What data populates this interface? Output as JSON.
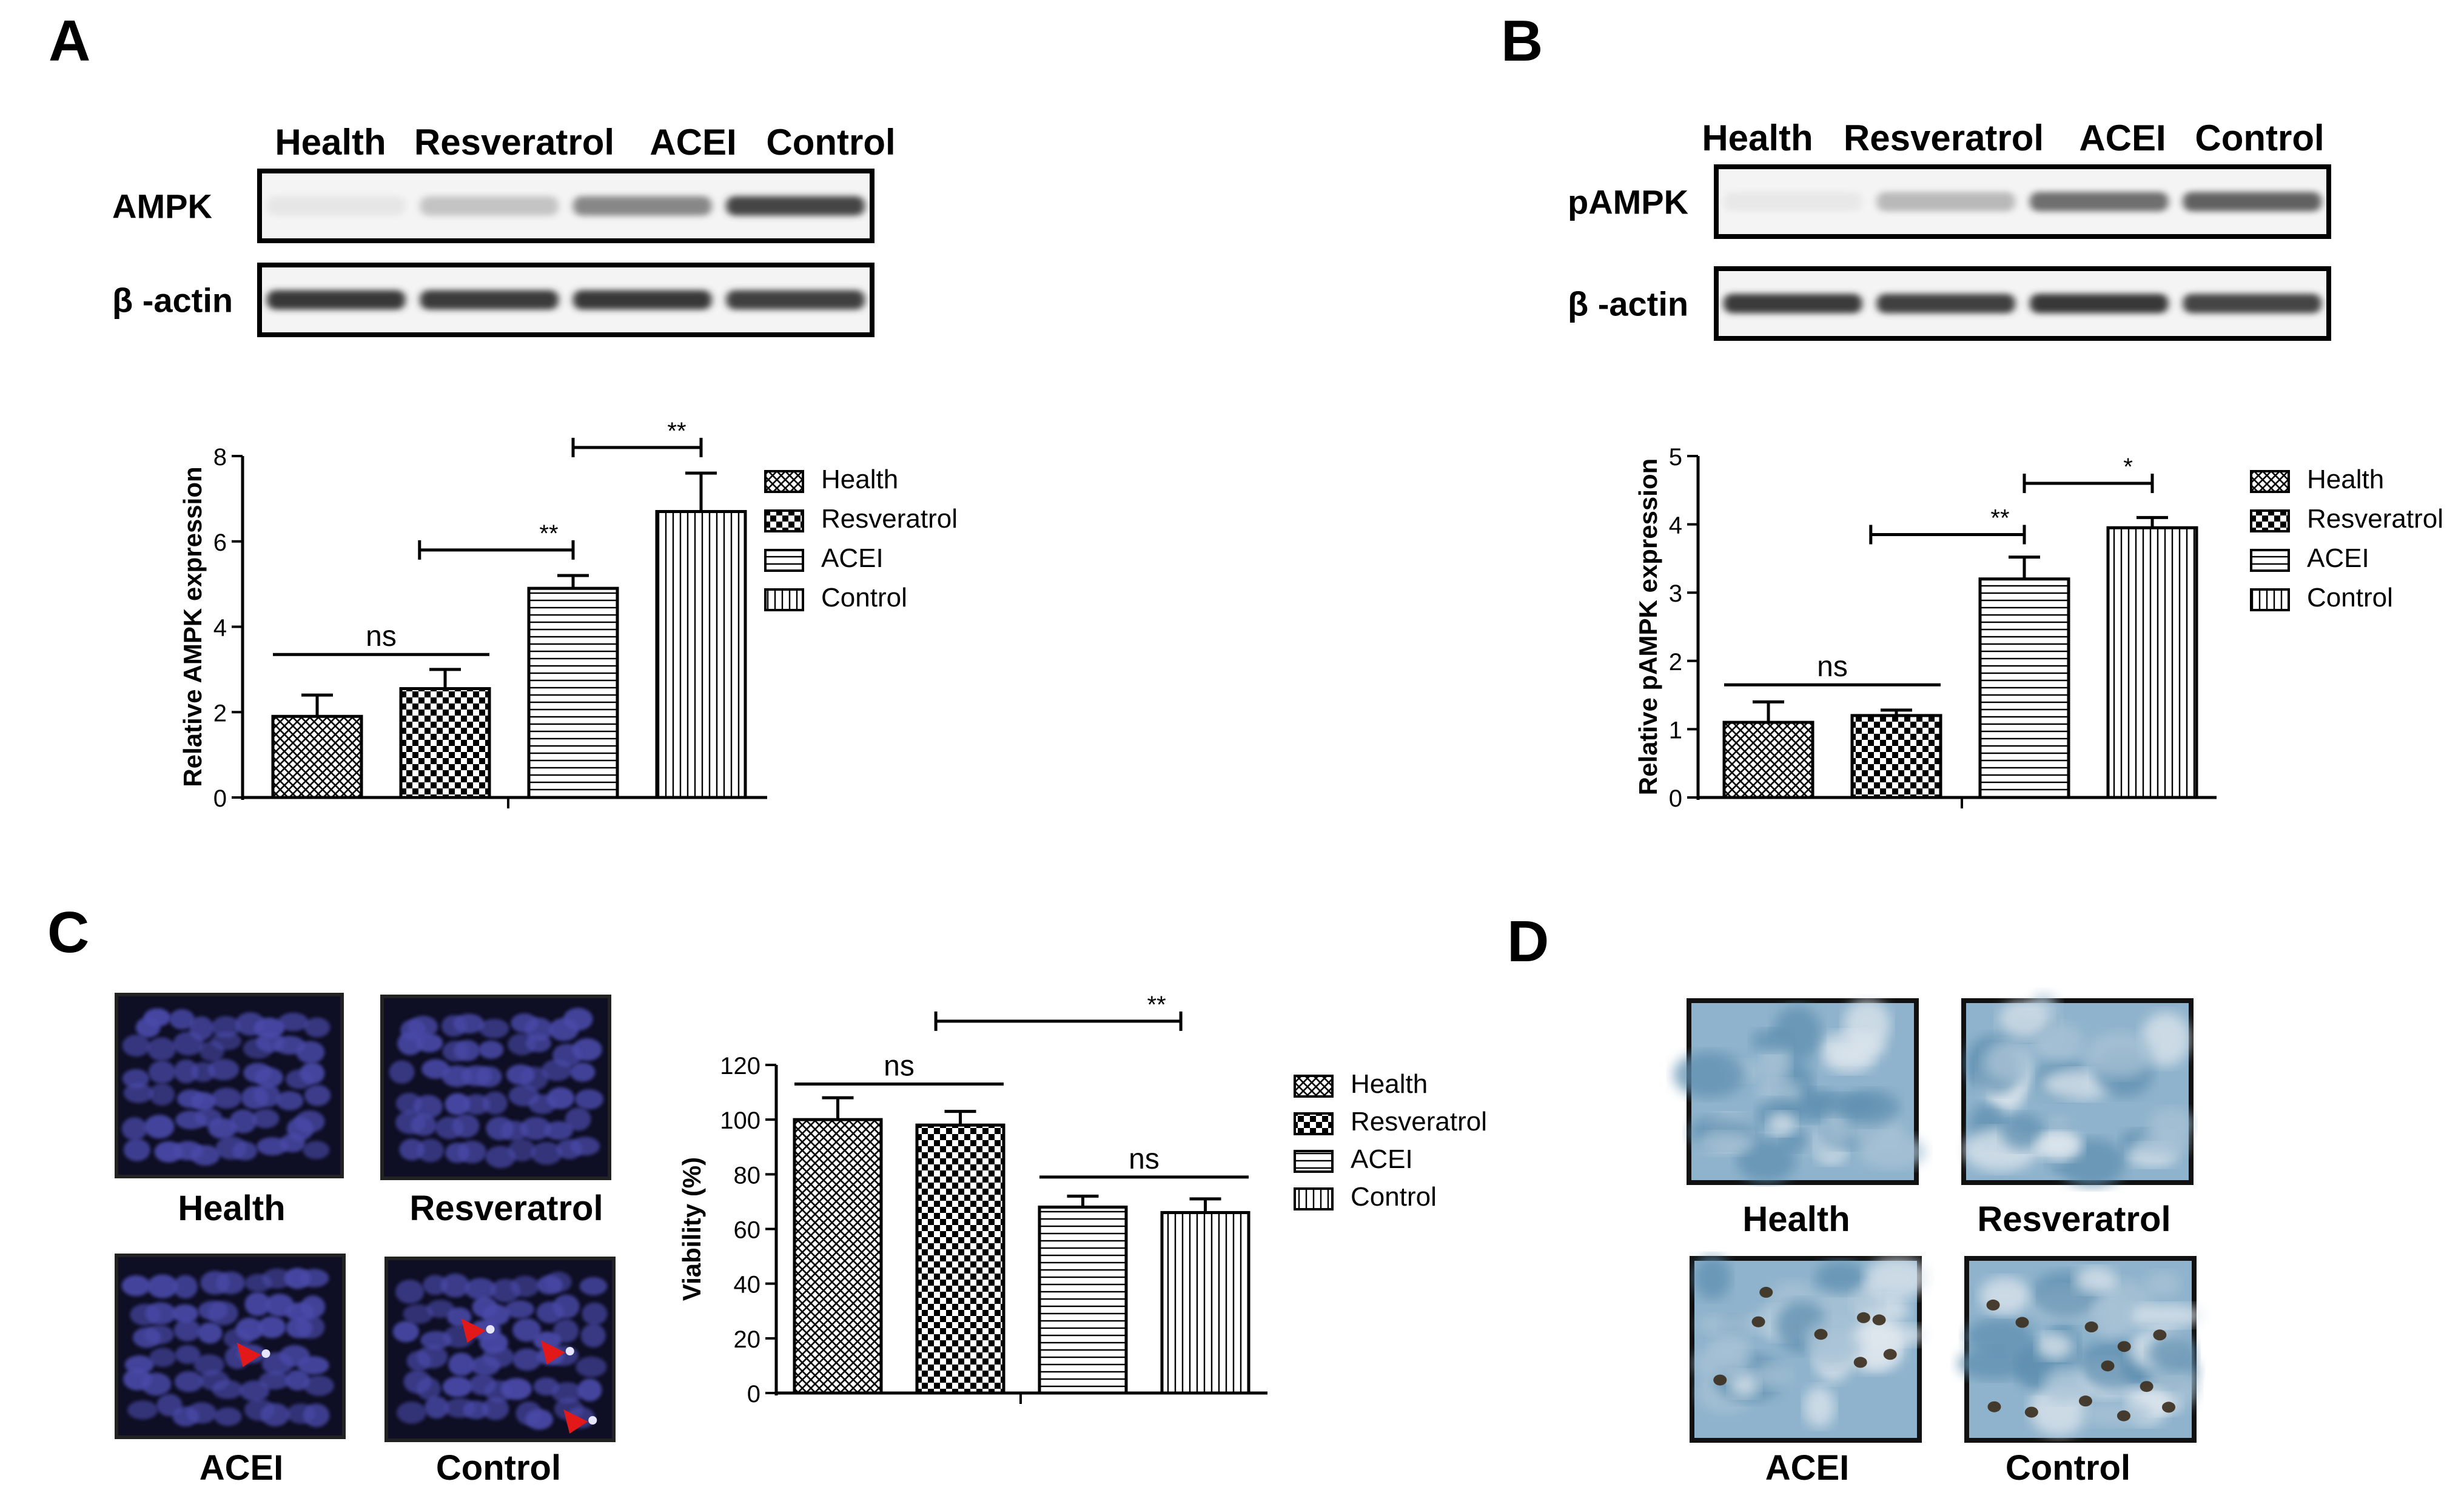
{
  "panels": {
    "A": {
      "letter": "A",
      "blot": {
        "lanes": [
          "Health",
          "Resveratrol",
          "ACEI",
          "Control"
        ],
        "rows": [
          {
            "label": "AMPK",
            "intensity": [
              0.12,
              0.35,
              0.6,
              0.85
            ]
          },
          {
            "label": "β -actin",
            "intensity": [
              0.92,
              0.9,
              0.92,
              0.88
            ]
          }
        ]
      }
    },
    "B": {
      "letter": "B",
      "blot": {
        "lanes": [
          "Health",
          "Resveratrol",
          "ACEI",
          "Control"
        ],
        "rows": [
          {
            "label": "pAMPK",
            "intensity": [
              0.1,
              0.4,
              0.68,
              0.72
            ]
          },
          {
            "label": "β -actin",
            "intensity": [
              0.9,
              0.88,
              0.92,
              0.85
            ]
          }
        ]
      }
    },
    "C": {
      "letter": "C",
      "micrographs": [
        "Health",
        "Resveratrol",
        "ACEI",
        "Control"
      ]
    },
    "D": {
      "letter": "D",
      "micrographs": [
        "Health",
        "Resveratrol",
        "ACEI",
        "Control"
      ]
    }
  },
  "colors": {
    "bar_outline": "#000000",
    "fluorescence_bg": "#0e0e24",
    "nucleus": "#4a4aa8",
    "arrow": "#e31818",
    "stain_bg": "#8fb3cc"
  },
  "chart_data": [
    {
      "id": "A",
      "type": "bar",
      "categories": [
        "Health",
        "Resveratrol",
        "ACEI",
        "Control"
      ],
      "values": [
        1.9,
        2.55,
        4.9,
        6.7
      ],
      "errors": [
        0.5,
        0.45,
        0.3,
        0.9
      ],
      "patterns": [
        "crosshatch",
        "checker",
        "hlines",
        "vlines"
      ],
      "ylabel": "Relative AMPK expression",
      "ylim": [
        0,
        8
      ],
      "yticks": [
        0,
        2,
        4,
        6,
        8
      ],
      "legend": [
        "Health",
        "Resveratrol",
        "ACEI",
        "Control"
      ],
      "legend_position": "right",
      "annotations": [
        {
          "from": 0,
          "to": 1,
          "label": "ns",
          "level": 3.35,
          "ticks": false
        },
        {
          "from": 0.8,
          "to": 2,
          "label": "**",
          "level": 5.8,
          "ticks": true
        },
        {
          "from": 2,
          "to": 3,
          "label": "**",
          "level": 8.2,
          "ticks": true
        }
      ]
    },
    {
      "id": "B",
      "type": "bar",
      "categories": [
        "Health",
        "Resveratrol",
        "ACEI",
        "Control"
      ],
      "values": [
        1.1,
        1.2,
        3.2,
        3.95
      ],
      "errors": [
        0.3,
        0.08,
        0.32,
        0.15
      ],
      "patterns": [
        "crosshatch",
        "checker",
        "hlines",
        "vlines"
      ],
      "ylabel": "Relative pAMPK expression",
      "ylim": [
        0,
        5
      ],
      "yticks": [
        0,
        1,
        2,
        3,
        4,
        5
      ],
      "legend": [
        "Health",
        "Resveratrol",
        "ACEI",
        "Control"
      ],
      "legend_position": "right",
      "annotations": [
        {
          "from": 0,
          "to": 1,
          "label": "ns",
          "level": 1.65,
          "ticks": false
        },
        {
          "from": 0.8,
          "to": 2,
          "label": "**",
          "level": 3.85,
          "ticks": true
        },
        {
          "from": 2,
          "to": 3,
          "label": "*",
          "level": 4.6,
          "ticks": true
        }
      ]
    },
    {
      "id": "C",
      "type": "bar",
      "categories": [
        "Health",
        "Resveratrol",
        "ACEI",
        "Control"
      ],
      "values": [
        100,
        98,
        68,
        66
      ],
      "errors": [
        8,
        5,
        4,
        5
      ],
      "patterns": [
        "crosshatch",
        "checker",
        "hlines",
        "vlines"
      ],
      "ylabel": "Viability  (%)",
      "ylim": [
        0,
        120
      ],
      "yticks": [
        0,
        20,
        40,
        60,
        80,
        100,
        120
      ],
      "legend": [
        "Health",
        "Resveratrol",
        "ACEI",
        "Control"
      ],
      "legend_position": "right",
      "annotations": [
        {
          "from": 0,
          "to": 1,
          "label": "ns",
          "level": 113,
          "ticks": false
        },
        {
          "from": 2,
          "to": 3,
          "label": "ns",
          "level": 79,
          "ticks": false
        },
        {
          "from": 0.8,
          "to": 2.8,
          "label": "**",
          "level": 136,
          "ticks": true
        }
      ]
    }
  ]
}
